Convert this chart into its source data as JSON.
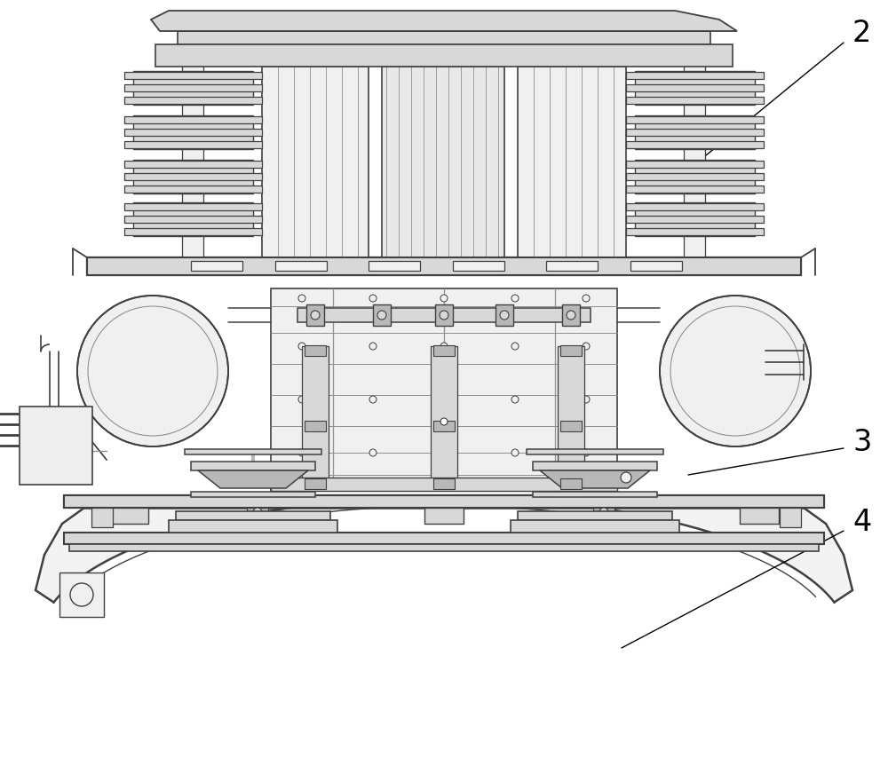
{
  "background_color": "#ffffff",
  "lc": "#404040",
  "llc": "#909090",
  "fc_light": "#f0f0f0",
  "fc_mid": "#d8d8d8",
  "fc_dark": "#b8b8b8",
  "label_2": "2",
  "label_3": "3",
  "label_4": "4",
  "label_fontsize": 24,
  "fig_width": 10.0,
  "fig_height": 8.72
}
